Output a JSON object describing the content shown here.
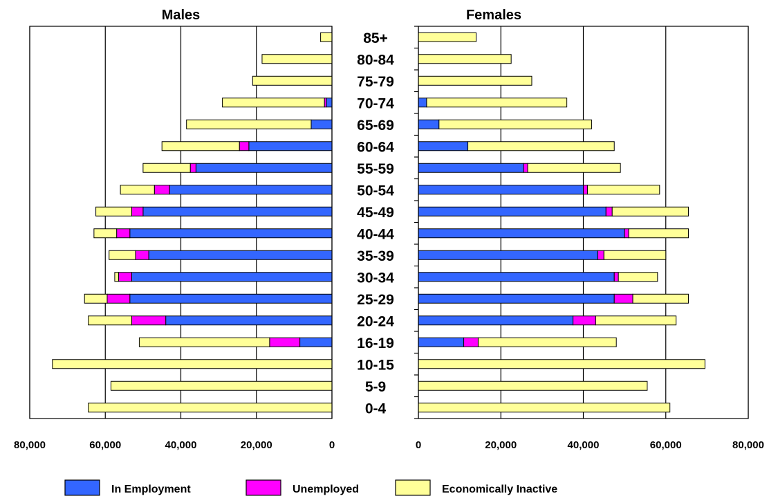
{
  "chart_data": {
    "type": "bar",
    "orientation": "horizontal",
    "layout": "population-pyramid",
    "panels": [
      {
        "key": "males",
        "title": "Males"
      },
      {
        "key": "females",
        "title": "Females"
      }
    ],
    "categories": [
      "85+",
      "80-84",
      "75-79",
      "70-74",
      "65-69",
      "60-64",
      "55-59",
      "50-54",
      "45-49",
      "40-44",
      "35-39",
      "30-34",
      "25-29",
      "20-24",
      "16-19",
      "10-15",
      "5-9",
      "0-4"
    ],
    "series": [
      {
        "name": "In Employment",
        "color": "#3366ff",
        "males": [
          0,
          0,
          0,
          1500,
          5500,
          22000,
          36000,
          43000,
          50000,
          53500,
          48500,
          53000,
          53500,
          44000,
          8500,
          0,
          0,
          0
        ],
        "females": [
          0,
          0,
          0,
          2000,
          5000,
          12000,
          25500,
          40000,
          45500,
          50000,
          43500,
          47500,
          47500,
          37500,
          11000,
          0,
          0,
          0
        ]
      },
      {
        "name": "Unemployed",
        "color": "#ff00ff",
        "males": [
          0,
          0,
          0,
          500,
          0,
          2500,
          1500,
          4000,
          3000,
          3500,
          3500,
          3500,
          6000,
          9000,
          8000,
          0,
          0,
          0
        ],
        "females": [
          0,
          0,
          0,
          0,
          0,
          0,
          1000,
          1000,
          1500,
          1000,
          1500,
          1000,
          4500,
          5500,
          3500,
          0,
          0,
          0
        ]
      },
      {
        "name": "Economically Inactive",
        "color": "#ffff99",
        "males": [
          3000,
          18500,
          21000,
          27000,
          33000,
          20500,
          12500,
          9000,
          9500,
          6000,
          7000,
          1000,
          6000,
          11500,
          34500,
          74000,
          58500,
          64500
        ],
        "females": [
          14000,
          22500,
          27500,
          34000,
          37000,
          35500,
          22500,
          17500,
          18500,
          14500,
          15000,
          9500,
          13500,
          19500,
          33500,
          69500,
          55500,
          61000
        ]
      }
    ],
    "x_axis": {
      "males": {
        "range": [
          80000,
          0
        ],
        "ticks": [
          80000,
          60000,
          40000,
          20000,
          0
        ],
        "tick_labels": [
          "80,000",
          "60,000",
          "40,000",
          "20,000",
          "0"
        ]
      },
      "females": {
        "range": [
          0,
          80000
        ],
        "ticks": [
          0,
          20000,
          40000,
          60000,
          80000
        ],
        "tick_labels": [
          "0",
          "20,000",
          "40,000",
          "60,000",
          "80,000"
        ]
      }
    },
    "grid": "vertical",
    "legend": {
      "position": "bottom",
      "entries": [
        "In Employment",
        "Unemployed",
        "Economically Inactive"
      ]
    },
    "stacked": true
  }
}
